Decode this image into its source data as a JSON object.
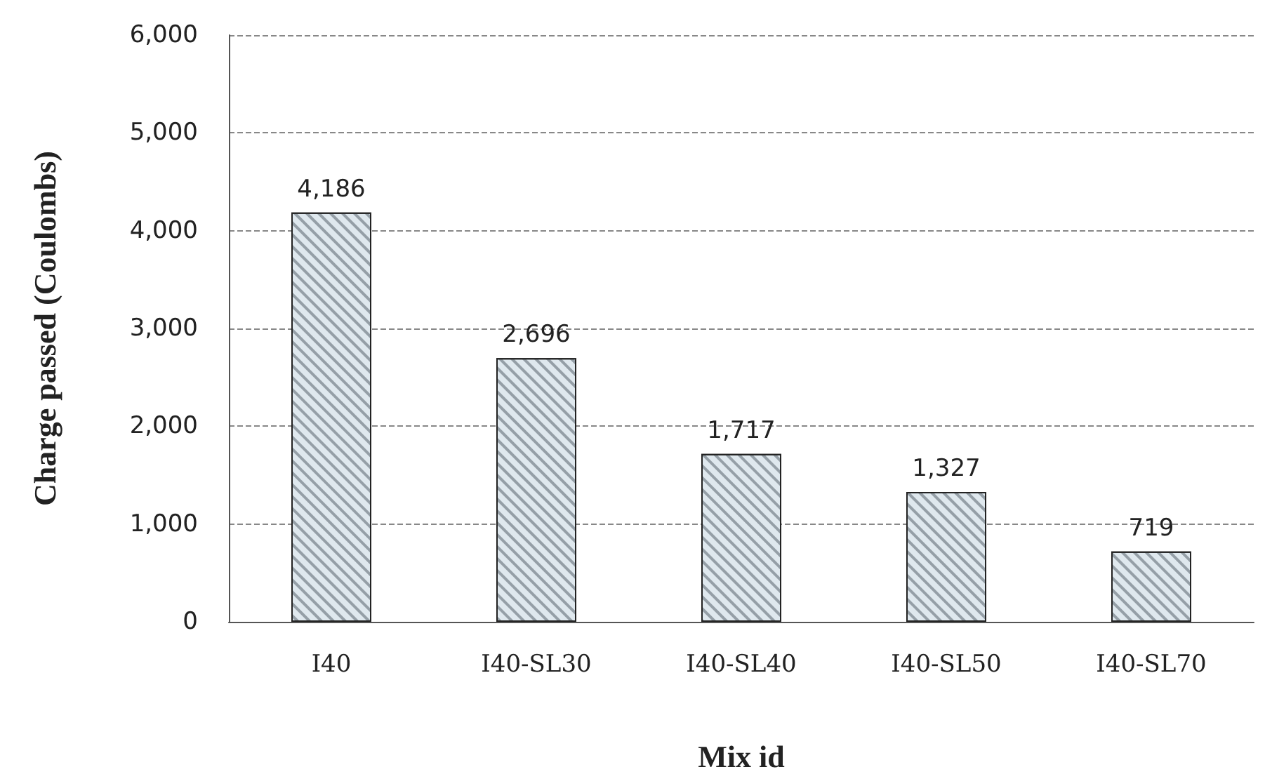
{
  "chart_data": {
    "type": "bar",
    "xlabel": "Mix id",
    "ylabel": "Charge passed (Coulombs)",
    "categories": [
      "I40",
      "I40-SL30",
      "I40-SL40",
      "I40-SL50",
      "I40-SL70"
    ],
    "values": [
      4186,
      2696,
      1717,
      1327,
      719
    ],
    "value_labels": [
      "4,186",
      "2,696",
      "1,717",
      "1,327",
      "719"
    ],
    "color": "#dfe8ee",
    "ylim": [
      0,
      6000
    ],
    "yticks": [
      {
        "value": 0,
        "label": "0"
      },
      {
        "value": 1000,
        "label": "1,000"
      },
      {
        "value": 2000,
        "label": "2,000"
      },
      {
        "value": 3000,
        "label": "3,000"
      },
      {
        "value": 4000,
        "label": "4,000"
      },
      {
        "value": 5000,
        "label": "5,000"
      },
      {
        "value": 6000,
        "label": "6,000"
      }
    ],
    "grid": "y"
  }
}
